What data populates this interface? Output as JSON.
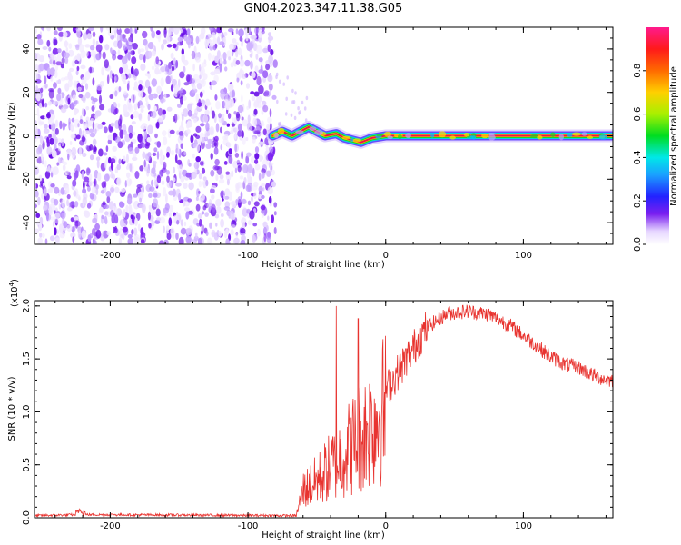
{
  "title": "GN04.2023.347.11.38.G05",
  "colors": {
    "snr_line": "#e8332f",
    "track_core": "#e8174a",
    "noise": "#7a1ff0"
  },
  "chart_data": [
    {
      "type": "heatmap",
      "name": "spectrogram",
      "xlabel": "Height of straight line (km)",
      "ylabel": "Frequency (Hz)",
      "xlim": [
        -255,
        165
      ],
      "ylim": [
        -50,
        50
      ],
      "xticks": [
        -200,
        -100,
        0,
        100
      ],
      "yticks": [
        -40,
        -20,
        0,
        20,
        40
      ],
      "noise_region_x": [
        -255,
        -80
      ],
      "track": {
        "description": "narrow high-amplitude line near 0 Hz",
        "points": [
          {
            "x": -82,
            "f": 0
          },
          {
            "x": -75,
            "f": 2
          },
          {
            "x": -68,
            "f": 0
          },
          {
            "x": -62,
            "f": 2
          },
          {
            "x": -56,
            "f": 4
          },
          {
            "x": -50,
            "f": 2
          },
          {
            "x": -44,
            "f": 0
          },
          {
            "x": -36,
            "f": 1
          },
          {
            "x": -30,
            "f": -1
          },
          {
            "x": -24,
            "f": -2
          },
          {
            "x": -18,
            "f": -3
          },
          {
            "x": -10,
            "f": -1
          },
          {
            "x": 0,
            "f": 0
          },
          {
            "x": 10,
            "f": 0
          },
          {
            "x": 165,
            "f": 0
          }
        ]
      },
      "colorbar": {
        "label": "Normalized spectral amplitude",
        "ticks": [
          "0.0",
          "0.2",
          "0.4",
          "0.6",
          "0.8"
        ],
        "tick_values": [
          0.0,
          0.2,
          0.4,
          0.6,
          0.8
        ],
        "range": [
          0,
          1
        ]
      }
    },
    {
      "type": "line",
      "name": "snr",
      "xlabel": "Height of straight line (km)",
      "ylabel": "SNR (10 * v/v)",
      "multiplier": "(x10",
      "multiplier_exp": "4",
      "multiplier_close": ")",
      "xlim": [
        -255,
        165
      ],
      "ylim": [
        0,
        2.05
      ],
      "xticks": [
        -200,
        -100,
        0,
        100
      ],
      "yticks": [
        "0.0",
        "0.5",
        "1.0",
        "1.5",
        "2.0"
      ],
      "ytick_values": [
        0,
        0.5,
        1.0,
        1.5,
        2.0
      ],
      "series_envelope": {
        "x": [
          -255,
          -220,
          -65,
          -60,
          -50,
          -40,
          -30,
          -20,
          -10,
          0,
          10,
          20,
          30,
          45,
          60,
          75,
          90,
          100,
          110,
          120,
          130,
          140,
          150,
          160,
          165
        ],
        "y": [
          0.02,
          0.03,
          0.02,
          0.3,
          0.4,
          0.55,
          0.7,
          0.85,
          1.0,
          1.2,
          1.4,
          1.6,
          1.8,
          1.93,
          1.95,
          1.92,
          1.82,
          1.72,
          1.62,
          1.52,
          1.45,
          1.42,
          1.35,
          1.3,
          1.3
        ]
      },
      "spikes": [
        {
          "x": -36,
          "y": 2.0
        },
        {
          "x": -20,
          "y": 1.88
        }
      ]
    }
  ]
}
